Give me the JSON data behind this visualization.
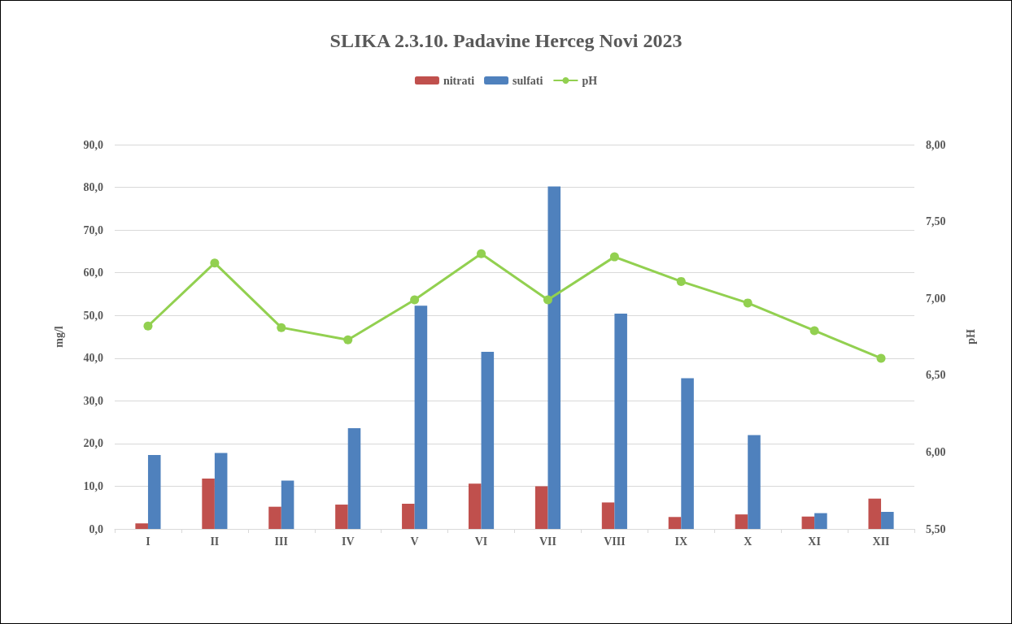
{
  "chart_data": {
    "type": "bar",
    "title": "SLIKA 2.3.10. Padavine Herceg Novi 2023",
    "ylabel": "mg/l",
    "y2label": "pH",
    "categories": [
      "I",
      "II",
      "III",
      "IV",
      "V",
      "VI",
      "VII",
      "VIII",
      "IX",
      "X",
      "XI",
      "XII"
    ],
    "series": [
      {
        "name": "nitrati",
        "color": "#c0504d",
        "values": [
          1.3,
          11.8,
          5.2,
          5.7,
          5.9,
          10.6,
          10.0,
          6.2,
          2.8,
          3.4,
          2.9,
          7.1
        ]
      },
      {
        "name": "sulfati",
        "color": "#4f81bd",
        "values": [
          17.3,
          17.8,
          11.3,
          23.6,
          52.3,
          41.5,
          80.2,
          50.4,
          35.3,
          22.0,
          3.7,
          4.0
        ]
      },
      {
        "name": "pH",
        "type": "line",
        "axis": "y2",
        "color": "#92d050",
        "values": [
          6.82,
          7.23,
          6.81,
          6.73,
          6.99,
          7.29,
          6.99,
          7.27,
          7.11,
          6.97,
          6.79,
          6.61
        ]
      }
    ],
    "ylim": [
      0,
      90
    ],
    "yticks": [
      {
        "value": 0,
        "label": "0,0"
      },
      {
        "value": 10,
        "label": "10,0"
      },
      {
        "value": 20,
        "label": "20,0"
      },
      {
        "value": 30,
        "label": "30,0"
      },
      {
        "value": 40,
        "label": "40,0"
      },
      {
        "value": 50,
        "label": "50,0"
      },
      {
        "value": 60,
        "label": "60,0"
      },
      {
        "value": 70,
        "label": "70,0"
      },
      {
        "value": 80,
        "label": "80,0"
      },
      {
        "value": 90,
        "label": "90,0"
      }
    ],
    "y2lim": [
      5.5,
      8
    ],
    "y2ticks": [
      {
        "value": 5.5,
        "label": "5,50"
      },
      {
        "value": 6,
        "label": "6,00"
      },
      {
        "value": 6.5,
        "label": "6,50"
      },
      {
        "value": 7,
        "label": "7,00"
      },
      {
        "value": 7.5,
        "label": "7,50"
      },
      {
        "value": 8,
        "label": "8,00"
      }
    ],
    "grid": "y",
    "legend": "top",
    "marker": "circle",
    "line_style": "solid"
  }
}
